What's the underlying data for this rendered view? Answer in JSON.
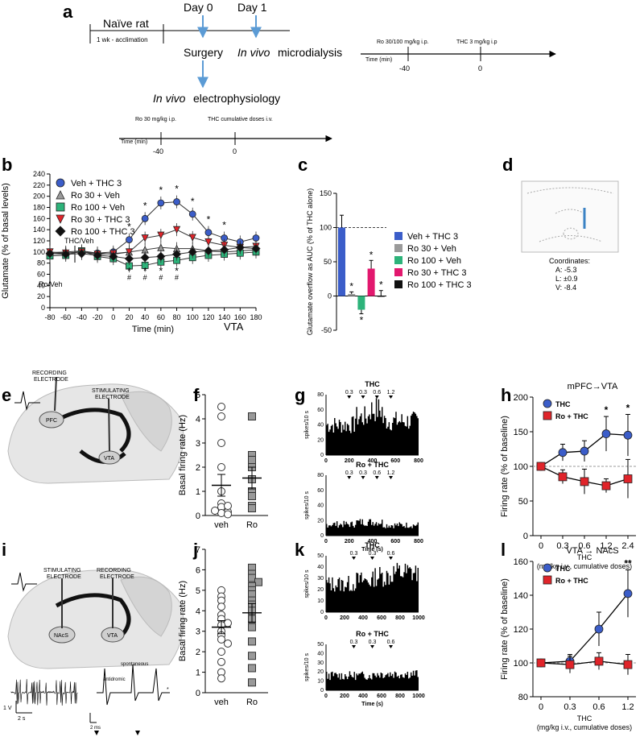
{
  "panels": {
    "a": {
      "letter": "a",
      "naive_rat": "Naïve rat",
      "acclimation": "1 wk - acclimation",
      "day0": "Day 0",
      "day1": "Day 1",
      "surgery": "Surgery",
      "microdialysis_em": "In vivo",
      "microdialysis": "microdialysis",
      "ephys_em": "In vivo",
      "ephys": "electrophysiology",
      "md_timeline": {
        "time_label": "Time (min)",
        "ro_label": "Ro 30/100 mg/kg i.p.",
        "thc_label": "THC 3 mg/kg i.p",
        "t1": "-40",
        "t2": "0"
      },
      "ep_timeline": {
        "time_label": "Time (min)",
        "ro_label": "Ro 30 mg/kg i.p.",
        "thc_label": "THC cumulative doses i.v.",
        "t1": "-40",
        "t2": "0"
      }
    },
    "b": {
      "letter": "b",
      "annot_thc": "THC/Veh",
      "annot_ro": "Ro/Veh",
      "region": "VTA"
    },
    "d": {
      "letter": "d",
      "coord_title": "Coordinates:",
      "coord_a": "A: -5.3",
      "coord_l": "L: ±0.9",
      "coord_v": "V: -8.4"
    },
    "e": {
      "letter": "e",
      "rec": "RECORDING",
      "elec": "ELECTRODE",
      "stim": "STIMULATING",
      "elec2": "ELECTRODE",
      "pfc": "PFC",
      "vta": "VTA"
    },
    "g": {
      "letter": "g",
      "title_top": "THC",
      "title_bottom": "Ro + THC",
      "ylabel": "spikes/10 s",
      "xlabel": "Time (s)",
      "doses": [
        "0.3",
        "0.3",
        "0.6",
        "1.2"
      ],
      "xticks": [
        "0",
        "200",
        "400",
        "600",
        "800"
      ],
      "yticks": [
        "0",
        "20",
        "40",
        "60",
        "80"
      ]
    },
    "i": {
      "letter": "i",
      "stim": "STIMULATING",
      "elec": "ELECTRODE",
      "rec": "RECORDING",
      "elec2": "ELECTRODE",
      "nacs": "NAcS",
      "vta": "VTA",
      "scale_v": "1 V",
      "scale_t": "2 s",
      "anti": "antidromic",
      "spont": "spontaneous",
      "scale_ms": "2 ms",
      "star": "*"
    },
    "k": {
      "letter": "k",
      "title_top": "THC",
      "title_bottom": "Ro + THC",
      "ylabel": "spikes/10 s",
      "xlabel": "Time (s)",
      "doses": [
        "0.3",
        "0.3",
        "0.6"
      ],
      "xticks": [
        "0",
        "200",
        "400",
        "600",
        "800",
        "1000"
      ],
      "yticks": [
        "0",
        "10",
        "20",
        "30",
        "40",
        "50"
      ]
    }
  },
  "chart_data": [
    {
      "id": "b",
      "type": "line",
      "xlabel": "Time (min)",
      "ylabel": "Glutamate (% of basal levels)",
      "x": [
        -80,
        -60,
        -40,
        -20,
        0,
        20,
        40,
        60,
        80,
        100,
        120,
        140,
        160,
        180
      ],
      "xlim": [
        -80,
        180
      ],
      "ylim": [
        0,
        240
      ],
      "yticks": [
        0,
        20,
        40,
        60,
        80,
        100,
        120,
        140,
        160,
        180,
        200,
        220,
        240
      ],
      "series": [
        {
          "name": "Veh + THC 3",
          "color": "#3b5dc9",
          "marker": "circle",
          "values": [
            97,
            98,
            100,
            98,
            100,
            122,
            160,
            188,
            190,
            168,
            135,
            125,
            118,
            125
          ]
        },
        {
          "name": "Ro 30 + Veh",
          "color": "#9a9a9a",
          "marker": "triangle",
          "values": [
            99,
            100,
            102,
            98,
            96,
            100,
            104,
            108,
            106,
            106,
            102,
            100,
            102,
            104
          ]
        },
        {
          "name": "Ro 100 + Veh",
          "color": "#2db37a",
          "marker": "square",
          "values": [
            93,
            94,
            102,
            92,
            88,
            75,
            76,
            82,
            85,
            90,
            94,
            96,
            98,
            100
          ]
        },
        {
          "name": "Ro 30 + THC 3",
          "color": "#e0242a",
          "marker": "triangle-down",
          "values": [
            100,
            98,
            100,
            96,
            97,
            100,
            125,
            130,
            140,
            126,
            118,
            112,
            108,
            110
          ]
        },
        {
          "name": "Ro 100 + THC 3",
          "color": "#111111",
          "marker": "diamond",
          "values": [
            97,
            96,
            97,
            94,
            92,
            88,
            90,
            92,
            96,
            100,
            102,
            104,
            108,
            106
          ]
        }
      ]
    },
    {
      "id": "c",
      "type": "bar",
      "ylabel": "Glutamate overflow as AUC (% of THC alone)",
      "ylim": [
        -50,
        150
      ],
      "yticks": [
        -50,
        0,
        50,
        100,
        150
      ],
      "categories": [
        "Veh + THC 3",
        "Ro 30 + Veh",
        "Ro 100 + Veh",
        "Ro 30 + THC 3",
        "Ro 100 + THC 3"
      ],
      "colors": [
        "#3b5dc9",
        "#9a9a9a",
        "#2db37a",
        "#e2186e",
        "#111111"
      ],
      "values": [
        100,
        3,
        -20,
        40,
        0
      ],
      "errors": [
        18,
        3,
        6,
        12,
        8
      ],
      "stars": [
        "",
        "*",
        "*",
        "*",
        "*"
      ]
    },
    {
      "id": "f",
      "type": "scatter",
      "ylabel": "Basal firing rate (Hz)",
      "ylim": [
        0,
        5
      ],
      "yticks": [
        0,
        1,
        2,
        3,
        4,
        5
      ],
      "categories": [
        "veh",
        "Ro"
      ],
      "groups": [
        {
          "name": "veh",
          "values": [
            4.5,
            4.1,
            3.0,
            2.0,
            1.0,
            0.5,
            0.35,
            0.15,
            0.1,
            0.05,
            0.2,
            0.4
          ],
          "mean": 1.25,
          "sem": 0.45
        },
        {
          "name": "Ro",
          "values": [
            4.1,
            2.5,
            2.3,
            2.0,
            1.5,
            1.0,
            0.8,
            0.4,
            0.3
          ],
          "mean": 1.55,
          "sem": 0.45
        }
      ]
    },
    {
      "id": "h",
      "type": "line",
      "title": "mPFC→VTA",
      "xlabel": "THC",
      "xlabel2": "(mg/kg i.v., cumulative doses)",
      "ylabel": "Firing rate (% of baseline)",
      "x": [
        0,
        0.3,
        0.6,
        1.2,
        2.4
      ],
      "xticks": [
        "0",
        "0.3",
        "0.6",
        "1.2",
        "2.4"
      ],
      "ylim": [
        0,
        200
      ],
      "yticks": [
        0,
        50,
        100,
        150,
        200
      ],
      "series": [
        {
          "name": "THC",
          "color": "#3b5dc9",
          "marker": "circle",
          "values": [
            100,
            120,
            122,
            147,
            145
          ],
          "errors": [
            5,
            12,
            15,
            25,
            30
          ]
        },
        {
          "name": "Ro + THC",
          "color": "#e0242a",
          "marker": "square",
          "values": [
            100,
            85,
            78,
            72,
            82
          ],
          "errors": [
            5,
            10,
            18,
            10,
            28
          ]
        }
      ],
      "stars": [
        "",
        "",
        "",
        "*",
        "*"
      ]
    },
    {
      "id": "j",
      "type": "scatter",
      "ylabel": "Basal firing rate (Hz)",
      "ylim": [
        0,
        7
      ],
      "yticks": [
        0,
        1,
        2,
        3,
        4,
        5,
        6,
        7
      ],
      "categories": [
        "veh",
        "Ro"
      ],
      "groups": [
        {
          "name": "veh",
          "values": [
            5.0,
            4.7,
            4.5,
            4.2,
            3.8,
            3.6,
            3.4,
            3.3,
            3.0,
            2.8,
            2.6,
            2.4,
            2.0,
            1.5,
            1.0,
            0.7
          ],
          "mean": 3.2,
          "sem": 0.32
        },
        {
          "name": "Ro",
          "values": [
            6.1,
            5.8,
            5.6,
            5.4,
            5.2,
            5.0,
            4.8,
            4.5,
            4.3,
            4.0,
            3.6,
            3.2,
            2.5,
            1.8,
            1.2,
            0.5
          ],
          "mean": 3.9,
          "sem": 0.45
        }
      ]
    },
    {
      "id": "l",
      "type": "line",
      "title": "VTA → NAcS",
      "xlabel": "THC",
      "xlabel2": "(mg/kg i.v., cumulative doses)",
      "ylabel": "Firing rate (% of baseline)",
      "x": [
        0,
        0.3,
        0.6,
        1.2
      ],
      "xticks": [
        "0",
        "0.3",
        "0.6",
        "1.2"
      ],
      "ylim": [
        80,
        160
      ],
      "yticks": [
        80,
        100,
        120,
        140,
        160
      ],
      "series": [
        {
          "name": "THC",
          "color": "#3b5dc9",
          "marker": "circle",
          "values": [
            100,
            101,
            120,
            141
          ],
          "errors": [
            2,
            4,
            10,
            14
          ]
        },
        {
          "name": "Ro + THC",
          "color": "#e0242a",
          "marker": "square",
          "values": [
            100,
            99,
            101,
            99
          ],
          "errors": [
            2,
            5,
            5,
            6
          ]
        }
      ],
      "stars": [
        "",
        "",
        "",
        "**"
      ]
    }
  ]
}
